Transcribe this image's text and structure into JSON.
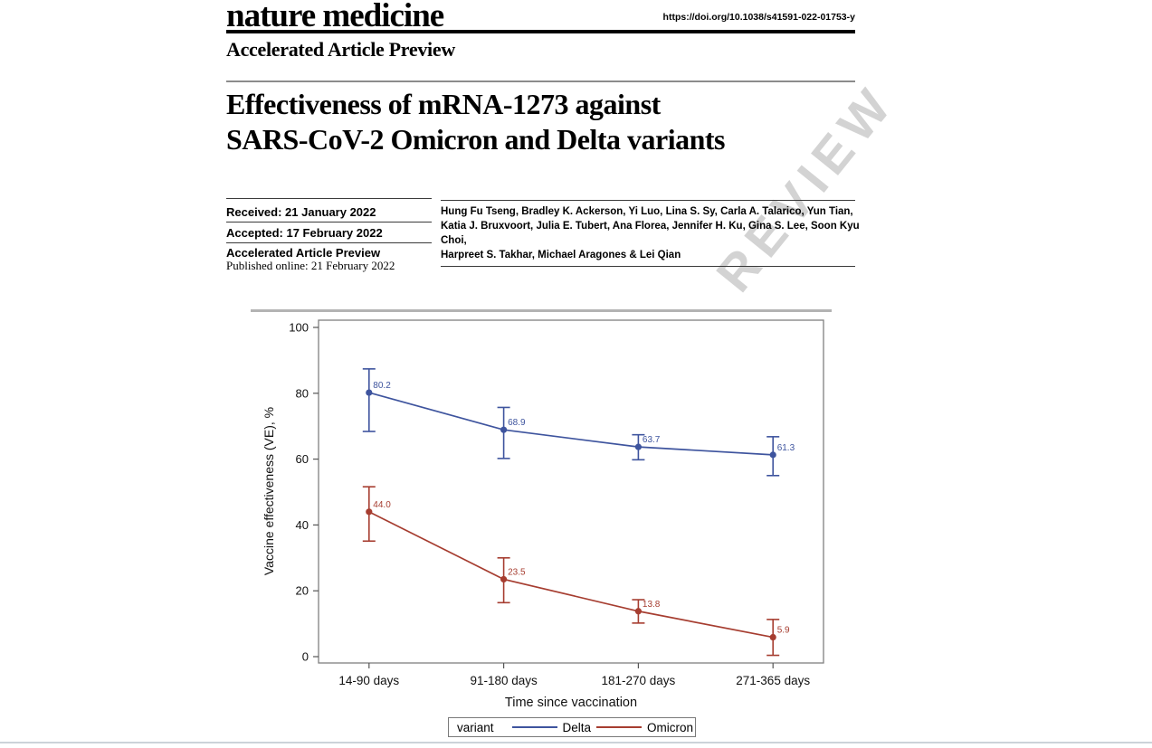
{
  "header": {
    "journal": "nature medicine",
    "doi": "https://doi.org/10.1038/s41591-022-01753-y",
    "section": "Accelerated Article Preview"
  },
  "article": {
    "title_line1": "Effectiveness of mRNA-1273 against",
    "title_line2": "SARS-CoV-2 Omicron and Delta variants",
    "received": "Received: 21 January 2022",
    "accepted": "Accepted: 17 February 2022",
    "preview_type": "Accelerated Article Preview",
    "published": "Published online: 21 February 2022",
    "authors_line1": "Hung Fu Tseng, Bradley K. Ackerson, Yi Luo, Lina S. Sy, Carla A. Talarico, Yun Tian,",
    "authors_line2": "Katia J. Bruxvoort, Julia E. Tubert, Ana Florea, Jennifer H. Ku, Gina S. Lee, Soon Kyu Choi,",
    "authors_line3": "Harpreet S. Takhar, Michael Aragones & Lei Qian"
  },
  "watermark": "REVIEW",
  "chart_data": {
    "type": "line",
    "title": "",
    "xlabel": "Time since vaccination",
    "ylabel": "Vaccine effectiveness (VE), %",
    "categories": [
      "14-90 days",
      "91-180 days",
      "181-270 days",
      "271-365 days"
    ],
    "yticks": [
      0,
      20,
      40,
      60,
      80,
      100
    ],
    "ylim": [
      0,
      100
    ],
    "grid": false,
    "error_bars": true,
    "legend_title": "variant",
    "legend_position": "bottom",
    "series": [
      {
        "name": "Delta",
        "color": "#3E549E",
        "values": [
          80.2,
          68.9,
          63.7,
          61.3
        ],
        "ci_low": [
          68.4,
          60.2,
          59.8,
          55.0
        ],
        "ci_high": [
          87.4,
          75.7,
          67.4,
          66.8
        ]
      },
      {
        "name": "Omicron",
        "color": "#A63D30",
        "values": [
          44.0,
          23.5,
          13.8,
          5.9
        ],
        "ci_low": [
          35.1,
          16.4,
          10.2,
          0.4
        ],
        "ci_high": [
          51.6,
          30.0,
          17.3,
          11.3
        ]
      }
    ]
  }
}
